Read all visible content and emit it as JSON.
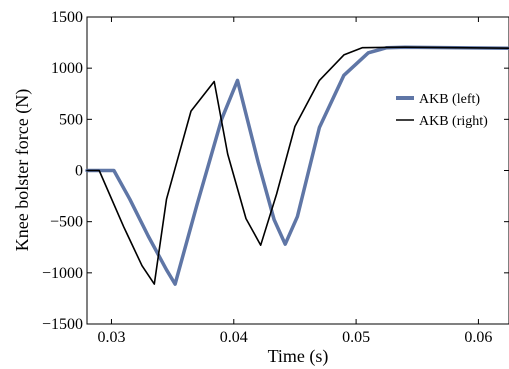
{
  "chart_data": {
    "type": "line",
    "xlabel": "Time (s)",
    "ylabel": "Knee bolster force (N)",
    "xlim": [
      0.028,
      0.0625
    ],
    "ylim": [
      -1500,
      1500
    ],
    "xticks": [
      0.03,
      0.04,
      0.05,
      0.06
    ],
    "xtick_labels": [
      "0.03",
      "0.04",
      "0.05",
      "0.06"
    ],
    "yticks": [
      -1500,
      -1000,
      -500,
      0,
      500,
      1000,
      1500
    ],
    "ytick_labels": [
      "−1500",
      "−1000",
      "−500",
      "0",
      "500",
      "1000",
      "1500"
    ],
    "grid": false,
    "legend_position": "right",
    "series": [
      {
        "name": "AKB (left)",
        "color": "#5f76a6",
        "style": "thick",
        "x": [
          0.028,
          0.0302,
          0.0315,
          0.033,
          0.0345,
          0.0352,
          0.037,
          0.039,
          0.0403,
          0.042,
          0.0433,
          0.0442,
          0.0452,
          0.047,
          0.049,
          0.051,
          0.0525,
          0.054,
          0.0625
        ],
        "y": [
          0,
          0,
          -280,
          -640,
          -970,
          -1110,
          -330,
          500,
          880,
          80,
          -480,
          -720,
          -450,
          420,
          930,
          1150,
          1200,
          1205,
          1195
        ]
      },
      {
        "name": "AKB (right)",
        "color": "#000000",
        "style": "thin",
        "x": [
          0.028,
          0.029,
          0.031,
          0.0325,
          0.0335,
          0.0345,
          0.0365,
          0.0384,
          0.0395,
          0.041,
          0.0422,
          0.0435,
          0.045,
          0.047,
          0.049,
          0.0505,
          0.054,
          0.0625
        ],
        "y": [
          0,
          0,
          -550,
          -930,
          -1110,
          -280,
          580,
          870,
          160,
          -470,
          -730,
          -230,
          430,
          880,
          1130,
          1200,
          1205,
          1195
        ]
      }
    ]
  }
}
